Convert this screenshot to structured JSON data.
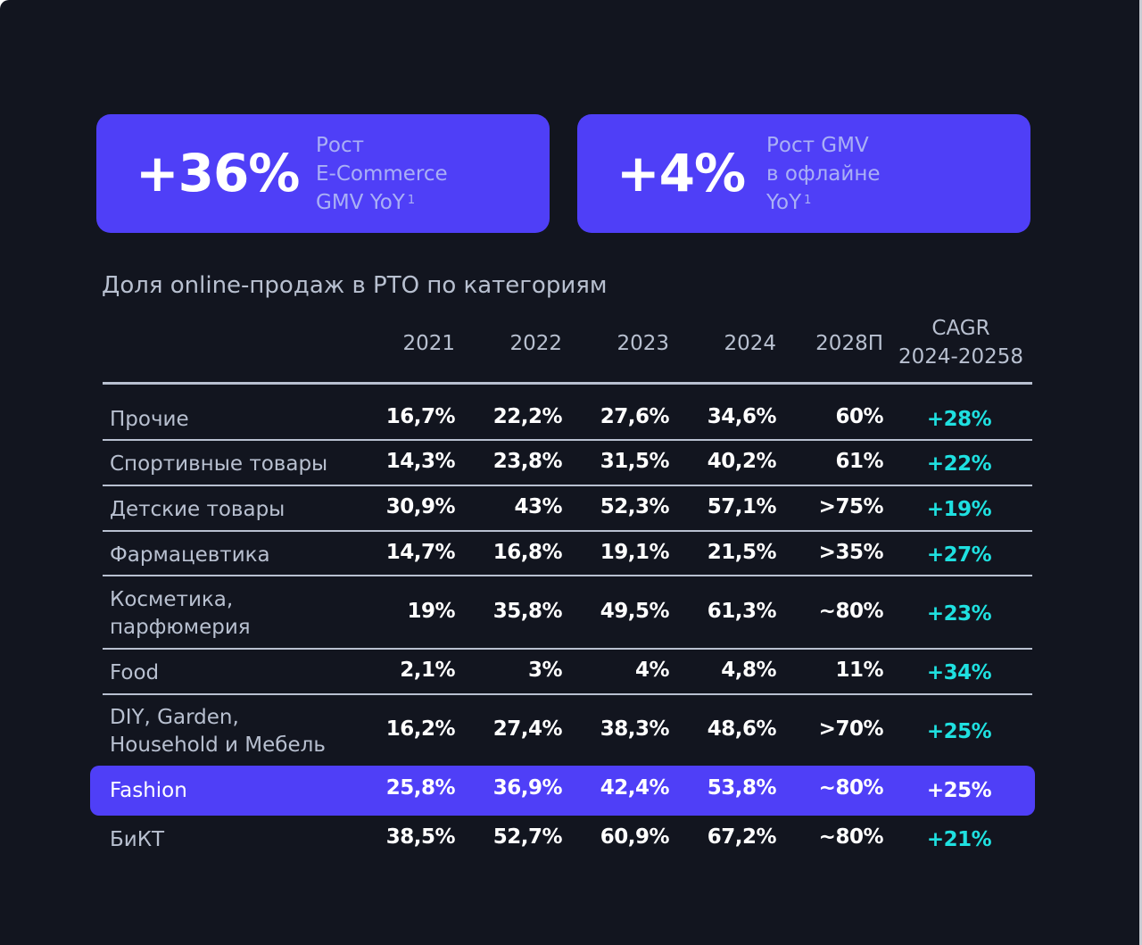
{
  "cards": [
    {
      "value": "+36%",
      "lines": [
        "Рост",
        "E-Commerce",
        "GMV YoY"
      ],
      "footnote": "1"
    },
    {
      "value": "+4%",
      "lines": [
        "Рост GMV",
        "в офлайне",
        "YoY"
      ],
      "footnote": "1"
    }
  ],
  "table": {
    "title": "Доля online-продаж в РТО по категориям",
    "columns": [
      "2021",
      "2022",
      "2023",
      "2024",
      "2028П"
    ],
    "cagr_header": [
      "CAGR",
      "2024-20258"
    ],
    "rows": [
      {
        "label": [
          "Прочие"
        ],
        "values": [
          "16,7%",
          "22,2%",
          "27,6%",
          "34,6%",
          "60%"
        ],
        "cagr": "+28%"
      },
      {
        "label": [
          "Спортивные товары"
        ],
        "values": [
          "14,3%",
          "23,8%",
          "31,5%",
          "40,2%",
          "61%"
        ],
        "cagr": "+22%"
      },
      {
        "label": [
          "Детские товары"
        ],
        "values": [
          "30,9%",
          "43%",
          "52,3%",
          "57,1%",
          ">75%"
        ],
        "cagr": "+19%"
      },
      {
        "label": [
          "Фармацевтика"
        ],
        "values": [
          "14,7%",
          "16,8%",
          "19,1%",
          "21,5%",
          ">35%"
        ],
        "cagr": "+27%"
      },
      {
        "label": [
          "Косметика,",
          "парфюмерия"
        ],
        "values": [
          "19%",
          "35,8%",
          "49,5%",
          "61,3%",
          "~80%"
        ],
        "cagr": "+23%"
      },
      {
        "label": [
          "Food"
        ],
        "values": [
          "2,1%",
          "3%",
          "4%",
          "4,8%",
          "11%"
        ],
        "cagr": "+34%"
      },
      {
        "label": [
          "DIY, Garden,",
          "Household и Мебель"
        ],
        "values": [
          "16,2%",
          "27,4%",
          "38,3%",
          "48,6%",
          ">70%"
        ],
        "cagr": "+25%"
      },
      {
        "label": [
          "Fashion"
        ],
        "values": [
          "25,8%",
          "36,9%",
          "42,4%",
          "53,8%",
          "~80%"
        ],
        "cagr": "+25%",
        "highlighted": true
      },
      {
        "label": [
          "БиКТ"
        ],
        "values": [
          "38,5%",
          "52,7%",
          "60,9%",
          "67,2%",
          "~80%"
        ],
        "cagr": "+21%"
      }
    ]
  },
  "colors": {
    "background": "#12151f",
    "accent": "#4f3ff7",
    "cagr_positive": "#1fe0e0",
    "muted_text": "#b8c0d0"
  }
}
